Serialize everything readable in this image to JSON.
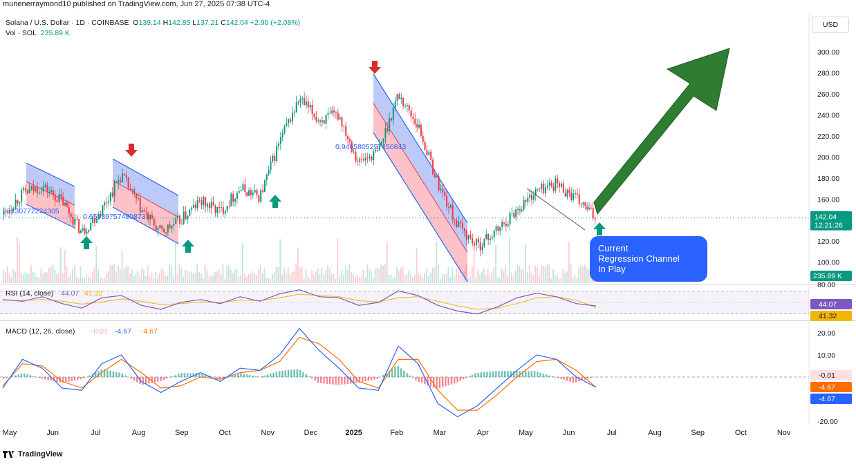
{
  "header": {
    "publisher_line": "munenerraymond10 published on TradingView.com, Jun 27, 2025 07:38 UTC-4"
  },
  "legend": {
    "symbol": "Solana / U.S. Dollar · 1D · COINBASE",
    "o_label": "O",
    "o_value": "139.14",
    "h_label": "H",
    "h_value": "142.85",
    "l_label": "L",
    "l_value": "137.21",
    "c_label": "C",
    "c_value": "142.04",
    "change": "+2.90 (+2.08%)",
    "vol_label": "Vol · SOL",
    "vol_value": "235.89 K"
  },
  "currency_button": "USD",
  "annotation": {
    "text_line1": "Current",
    "text_line2": "Regression Channel",
    "text_line3": "In Play"
  },
  "channel_labels": [
    "88130772224305",
    "0.659397574808731",
    "0.9465805257450843"
  ],
  "price_tags": {
    "last_price": "142.04",
    "countdown": "12:21:26",
    "volume": "235.89 K",
    "rsi": "44.07",
    "rsi_ma": "41.32",
    "macd_hist": "-0.01",
    "macd_line": "-4.67",
    "macd_signal": "-4.67"
  },
  "rsi_legend": {
    "label": "RSI (14, close)",
    "v1": "44.07",
    "v2": "41.32"
  },
  "macd_legend": {
    "label": "MACD (12, 26, close)",
    "v1": "-0.01",
    "v2": "-4.67",
    "v3": "-4.67"
  },
  "footer_logo": "TradingView",
  "colors": {
    "up": "#089981",
    "down": "#f23645",
    "channel_blue": "#7b9cf5",
    "channel_red": "#f7a6ac",
    "arrow_green": "#2e7d32",
    "note_blue": "#2962ff",
    "rsi": "#7e57c2",
    "macd": "#2962ff",
    "signal": "#ff6d00"
  },
  "chart_data": [
    {
      "type": "candlestick",
      "title": "Solana / U.S. Dollar · 1D · COINBASE",
      "ylim": [
        80,
        310
      ],
      "y_ticks": [
        "300.00",
        "280.00",
        "260.00",
        "240.00",
        "220.00",
        "200.00",
        "180.00",
        "160.00",
        "140.00",
        "120.00",
        "100.00"
      ],
      "x_ticks": [
        "May",
        "Jun",
        "Jul",
        "Aug",
        "Sep",
        "Oct",
        "Nov",
        "Dec",
        "2025",
        "Feb",
        "Mar",
        "Apr",
        "May",
        "Jun",
        "Jul",
        "Aug",
        "Sep",
        "Oct",
        "Nov"
      ],
      "close_path": [
        {
          "x": "May",
          "y": 145
        },
        {
          "x": "May",
          "y": 165
        },
        {
          "x": "Jun",
          "y": 172
        },
        {
          "x": "Jun",
          "y": 158
        },
        {
          "x": "Jul",
          "y": 128
        },
        {
          "x": "Jul",
          "y": 150
        },
        {
          "x": "Aug",
          "y": 183
        },
        {
          "x": "Aug",
          "y": 150
        },
        {
          "x": "Sep",
          "y": 128
        },
        {
          "x": "Sep",
          "y": 140
        },
        {
          "x": "Oct",
          "y": 158
        },
        {
          "x": "Oct",
          "y": 148
        },
        {
          "x": "Nov",
          "y": 170
        },
        {
          "x": "Nov",
          "y": 162
        },
        {
          "x": "Nov",
          "y": 215
        },
        {
          "x": "Dec",
          "y": 255
        },
        {
          "x": "Dec",
          "y": 235
        },
        {
          "x": "Dec",
          "y": 240
        },
        {
          "x": "2025",
          "y": 195
        },
        {
          "x": "2025",
          "y": 205
        },
        {
          "x": "Feb",
          "y": 260
        },
        {
          "x": "Feb",
          "y": 230
        },
        {
          "x": "Mar",
          "y": 175
        },
        {
          "x": "Mar",
          "y": 135
        },
        {
          "x": "Apr",
          "y": 115
        },
        {
          "x": "Apr",
          "y": 130
        },
        {
          "x": "May",
          "y": 150
        },
        {
          "x": "May",
          "y": 168
        },
        {
          "x": "Jun",
          "y": 175
        },
        {
          "x": "Jun",
          "y": 160
        },
        {
          "x": "Jul",
          "y": 142
        }
      ],
      "last_value": 142.04
    },
    {
      "type": "line",
      "title": "RSI (14, close)",
      "ylim": [
        20,
        80
      ],
      "y_ticks": [
        "80.00"
      ],
      "series": [
        {
          "name": "RSI",
          "values": [
            55,
            52,
            60,
            48,
            40,
            58,
            62,
            45,
            38,
            50,
            55,
            48,
            60,
            52,
            65,
            72,
            60,
            58,
            45,
            50,
            70,
            62,
            45,
            35,
            30,
            42,
            58,
            66,
            60,
            48,
            44
          ]
        },
        {
          "name": "MA",
          "values": [
            54,
            53,
            55,
            52,
            47,
            51,
            56,
            52,
            46,
            48,
            51,
            50,
            54,
            53,
            58,
            64,
            62,
            60,
            53,
            51,
            58,
            60,
            52,
            44,
            38,
            40,
            48,
            58,
            60,
            54,
            41
          ]
        }
      ]
    },
    {
      "type": "line",
      "title": "MACD (12, 26, close)",
      "ylim": [
        -20,
        25
      ],
      "y_ticks": [
        "20.00",
        "10.00",
        "0.00",
        "-20.00"
      ],
      "series": [
        {
          "name": "MACD",
          "values": [
            -5,
            8,
            4,
            -5,
            -6,
            6,
            10,
            -2,
            -7,
            -2,
            2,
            -2,
            4,
            3,
            10,
            22,
            12,
            4,
            -5,
            -6,
            14,
            6,
            -12,
            -18,
            -13,
            -5,
            3,
            10,
            8,
            0,
            -4.67
          ]
        },
        {
          "name": "Signal",
          "values": [
            -4,
            6,
            5,
            -2,
            -5,
            2,
            8,
            2,
            -5,
            -4,
            0,
            -1,
            2,
            3,
            7,
            18,
            15,
            8,
            -2,
            -5,
            8,
            8,
            -6,
            -15,
            -15,
            -8,
            0,
            7,
            8,
            3,
            -4.67
          ]
        }
      ]
    }
  ]
}
